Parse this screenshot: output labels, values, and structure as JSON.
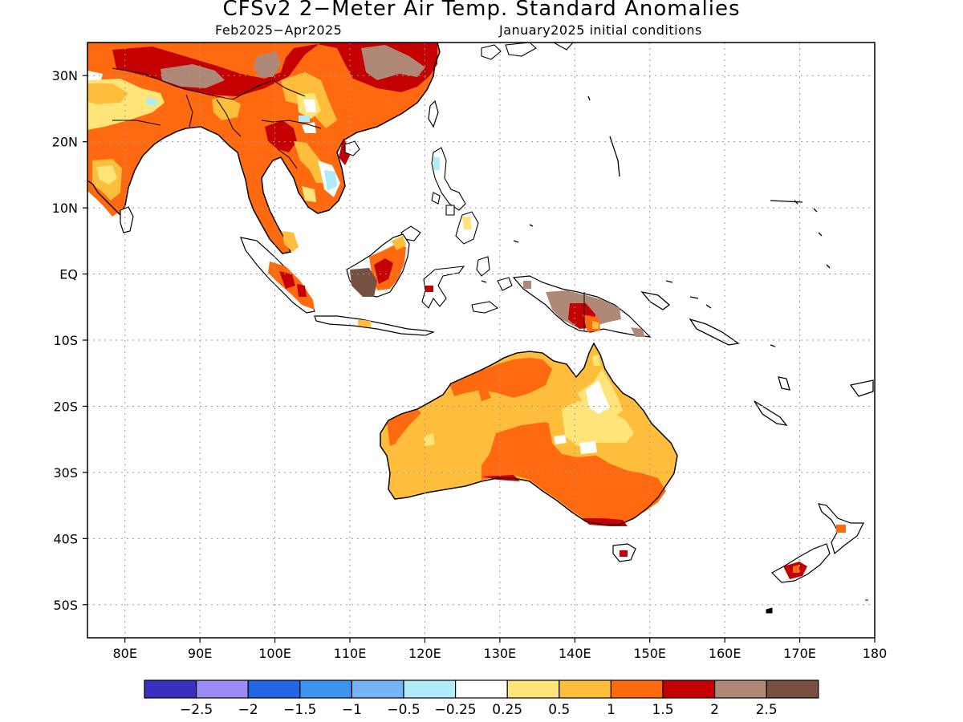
{
  "map": {
    "title": "CFSv2 2−Meter Air Temp. Standard Anomalies",
    "subtitle_left": "Feb2025−Apr2025",
    "subtitle_right": "January2025 initial conditions",
    "extent": {
      "lon_min": 75,
      "lon_max": 180,
      "lat_min": -55,
      "lat_max": 35
    },
    "lon_ticks": [
      {
        "value": 80,
        "label": "80E"
      },
      {
        "value": 90,
        "label": "90E"
      },
      {
        "value": 100,
        "label": "100E"
      },
      {
        "value": 110,
        "label": "110E"
      },
      {
        "value": 120,
        "label": "120E"
      },
      {
        "value": 130,
        "label": "130E"
      },
      {
        "value": 140,
        "label": "140E"
      },
      {
        "value": 150,
        "label": "150E"
      },
      {
        "value": 160,
        "label": "160E"
      },
      {
        "value": 170,
        "label": "170E"
      },
      {
        "value": 180,
        "label": "180"
      }
    ],
    "lat_ticks": [
      {
        "value": 30,
        "label": "30N"
      },
      {
        "value": 20,
        "label": "20N"
      },
      {
        "value": 10,
        "label": "10N"
      },
      {
        "value": 0,
        "label": "EQ"
      },
      {
        "value": -10,
        "label": "10S"
      },
      {
        "value": -20,
        "label": "20S"
      },
      {
        "value": -30,
        "label": "30S"
      },
      {
        "value": -40,
        "label": "40S"
      },
      {
        "value": -50,
        "label": "50S"
      }
    ],
    "gridlines": true
  },
  "colorbar": {
    "colors": [
      "#3b2fbf",
      "#9b8cf5",
      "#2266e6",
      "#3c93f0",
      "#74b4f7",
      "#b0ecf8",
      "#ffffff",
      "#ffe47a",
      "#ffbd3c",
      "#ff6a10",
      "#c40000",
      "#b08878",
      "#785042"
    ],
    "labels": [
      "−2.5",
      "−2",
      "−1.5",
      "−1",
      "−0.5",
      "−0.25",
      "0.25",
      "0.5",
      "1",
      "1.5",
      "2",
      "2.5"
    ]
  }
}
